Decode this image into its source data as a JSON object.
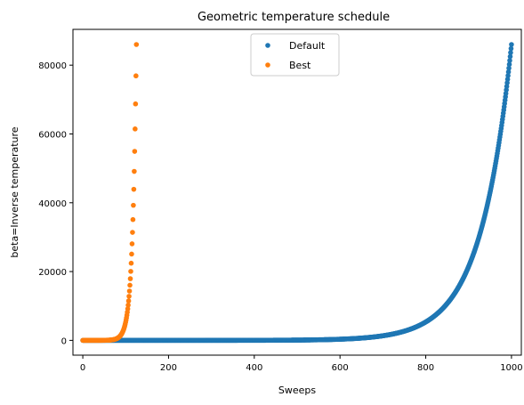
{
  "chart_data": {
    "type": "scatter",
    "title": "Geometric temperature schedule",
    "xlabel": "Sweeps",
    "ylabel": "beta=Inverse temperature",
    "xlim": [
      -23,
      1023
    ],
    "ylim": [
      -4300,
      90400
    ],
    "xticks": [
      0,
      200,
      400,
      600,
      800,
      1000
    ],
    "xtick_labels": [
      "0",
      "200",
      "400",
      "600",
      "800",
      "1000"
    ],
    "yticks": [
      0,
      20000,
      40000,
      60000,
      80000
    ],
    "ytick_labels": [
      "0",
      "20000",
      "40000",
      "60000",
      "80000"
    ],
    "grid": false,
    "legend_position": "upper center",
    "series": [
      {
        "name": "Default",
        "color": "#1f77b4",
        "n_points": 1000,
        "x_start": 0,
        "x_end": 1000,
        "y_start": 0.08,
        "y_end": 86000,
        "scale": "geometric"
      },
      {
        "name": "Best",
        "color": "#ff7f0e",
        "n_points": 125,
        "x_start": 0,
        "x_end": 125,
        "y_start": 0.08,
        "y_end": 86000,
        "scale": "geometric"
      }
    ]
  }
}
